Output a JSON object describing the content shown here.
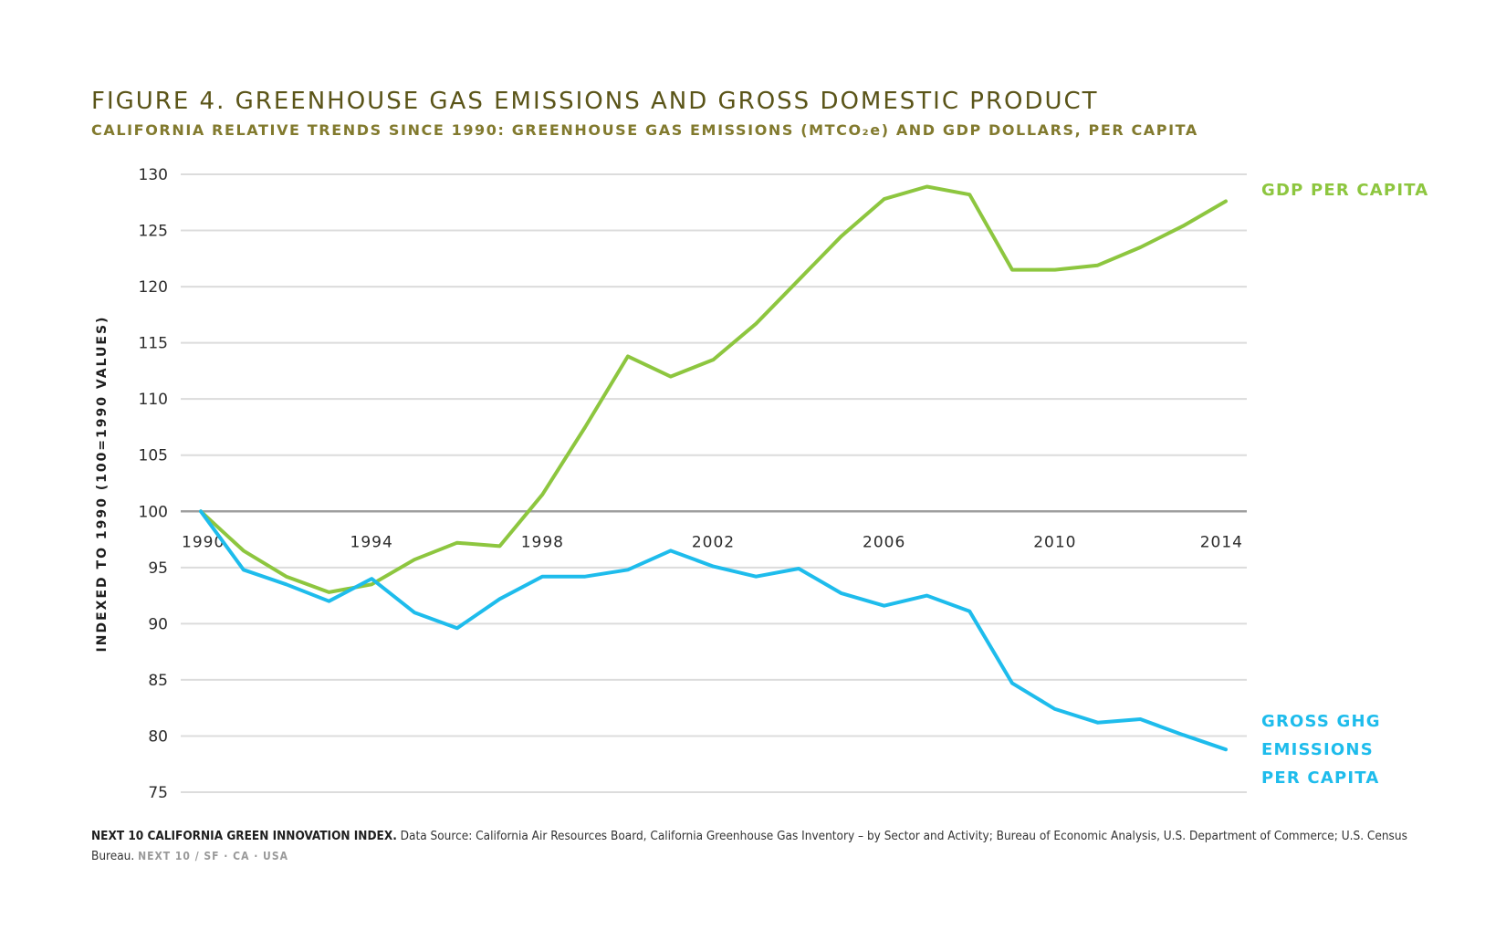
{
  "chart_data": {
    "type": "line",
    "title": "FIGURE 4. GREENHOUSE GAS EMISSIONS AND GROSS DOMESTIC PRODUCT",
    "subtitle": "CALIFORNIA RELATIVE TRENDS SINCE 1990: GREENHOUSE GAS EMISSIONS (MTCO₂e) AND GDP DOLLARS, PER CAPITA",
    "xlabel": "",
    "ylabel": "INDEXED TO 1990 (100=1990 VALUES)",
    "ylim": [
      75,
      130
    ],
    "yticks": [
      130,
      125,
      120,
      115,
      110,
      105,
      100,
      95,
      90,
      85,
      80,
      75
    ],
    "xlim": [
      1990,
      2014
    ],
    "xticks": [
      1990,
      1994,
      1998,
      2002,
      2006,
      2010,
      2014
    ],
    "grid": true,
    "x": [
      1990,
      1991,
      1992,
      1993,
      1994,
      1995,
      1996,
      1997,
      1998,
      1999,
      2000,
      2001,
      2002,
      2003,
      2004,
      2005,
      2006,
      2007,
      2008,
      2009,
      2010,
      2011,
      2012,
      2013,
      2014
    ],
    "series": [
      {
        "name": "GDP PER CAPITA",
        "color": "#8dc63f",
        "values": [
          100,
          96.5,
          94.2,
          92.8,
          93.5,
          95.7,
          97.2,
          96.9,
          101.5,
          107.5,
          113.8,
          112.0,
          113.5,
          116.7,
          120.6,
          124.5,
          127.8,
          128.9,
          128.2,
          121.5,
          121.5,
          121.9,
          123.5,
          125.4,
          127.6
        ]
      },
      {
        "name": "GROSS GHG EMISSIONS PER CAPITA",
        "color": "#1ebcec",
        "values": [
          100,
          94.8,
          93.5,
          92.0,
          94.0,
          91.0,
          89.6,
          92.2,
          94.2,
          94.2,
          94.8,
          96.5,
          95.1,
          94.2,
          94.9,
          92.7,
          91.6,
          92.5,
          91.1,
          84.7,
          82.4,
          81.2,
          81.5,
          80.1,
          78.8
        ]
      }
    ]
  },
  "labels": {
    "gdp": "GDP PER CAPITA",
    "ghg_line1": "GROSS GHG",
    "ghg_line2": "EMISSIONS",
    "ghg_line3": "PER CAPITA"
  },
  "footer": {
    "source_name": "NEXT 10 CALIFORNIA GREEN INNOVATION INDEX.",
    "source_text": " Data Source: California Air Resources Board, California Greenhouse Gas Inventory – by Sector and Activity; Bureau of Economic Analysis, U.S. Department of Commerce; U.S. Census Bureau. ",
    "tag": "NEXT 10  /  SF · CA · USA"
  },
  "colors": {
    "title": "#5a5418",
    "subtitle": "#827a2e",
    "grid": "#dcdcdc",
    "baseline": "#9e9e9e"
  }
}
